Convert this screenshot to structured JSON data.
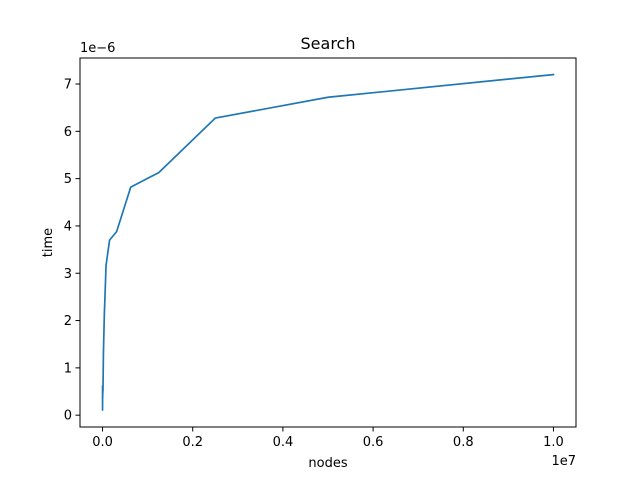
{
  "chart_data": {
    "type": "line",
    "title": "Search",
    "xlabel": "nodes",
    "ylabel": "time",
    "x_offset_text": "1e7",
    "y_offset_text": "1e−6",
    "xlim": [
      -500000,
      10500000
    ],
    "ylim": [
      -2.5e-07,
      7.55e-06
    ],
    "grid": false,
    "x_ticks": [
      {
        "value": 0,
        "label": "0.0"
      },
      {
        "value": 2000000,
        "label": "0.2"
      },
      {
        "value": 4000000,
        "label": "0.4"
      },
      {
        "value": 6000000,
        "label": "0.6"
      },
      {
        "value": 8000000,
        "label": "0.8"
      },
      {
        "value": 10000000,
        "label": "1.0"
      }
    ],
    "y_ticks": [
      {
        "value": 0,
        "label": "0"
      },
      {
        "value": 1e-06,
        "label": "1"
      },
      {
        "value": 2e-06,
        "label": "2"
      },
      {
        "value": 3e-06,
        "label": "3"
      },
      {
        "value": 4e-06,
        "label": "4"
      },
      {
        "value": 5e-06,
        "label": "5"
      },
      {
        "value": 6e-06,
        "label": "6"
      },
      {
        "value": 7e-06,
        "label": "7"
      }
    ],
    "series": [
      {
        "color": "#1f77b4",
        "x": [
          10,
          20,
          40,
          80,
          160,
          300,
          600,
          1200,
          2400,
          4800,
          9600,
          19500,
          39000,
          78000,
          156000,
          312000,
          625000,
          1250000,
          2500000,
          5000000,
          10000000
        ],
        "y": [
          6.1e-07,
          2.6e-07,
          1.1e-07,
          5.3e-07,
          3e-07,
          3.6e-07,
          2.1e-07,
          5.1e-07,
          3.6e-07,
          4.6e-07,
          5.3e-07,
          1.31e-06,
          2.1e-06,
          3.17e-06,
          3.7e-06,
          3.88e-06,
          4.82e-06,
          5.13e-06,
          6.28e-06,
          6.72e-06,
          7.2e-06
        ]
      }
    ]
  }
}
